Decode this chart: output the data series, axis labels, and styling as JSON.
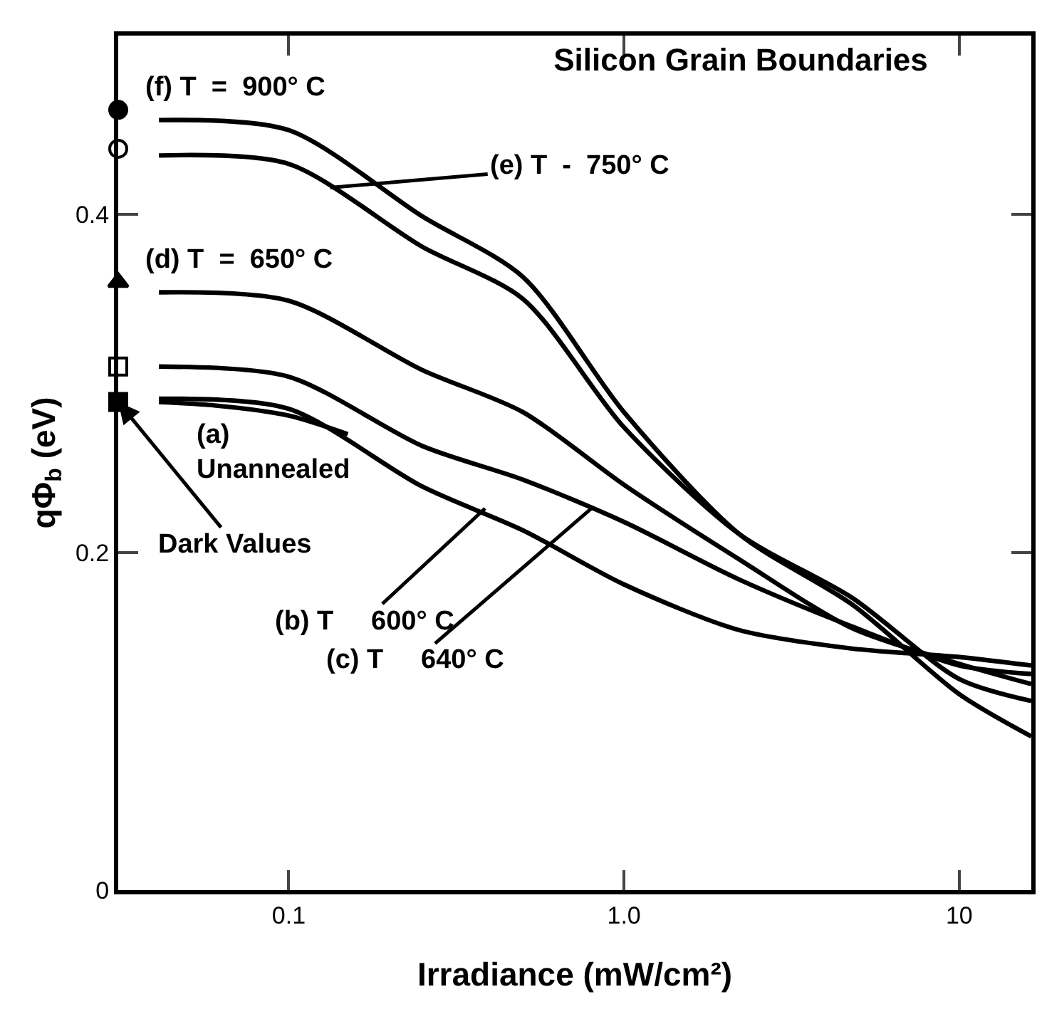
{
  "chart_data": {
    "type": "line",
    "title": "Silicon Grain Boundaries",
    "xlabel": "Irradiance (mW/cm²)",
    "ylabel": "qΦ$_{b}$ (eV)",
    "log": "x",
    "xlim": [
      0.031,
      16.4
    ],
    "ylim": [
      0,
      0.506
    ],
    "xticks": [
      0.1,
      {
        "value": 1,
        "label": "1.0"
      },
      10
    ],
    "yticks": [
      0,
      0.2,
      0.4
    ],
    "marker": "none",
    "line_style": "solid",
    "series": [
      {
        "color": "#000000",
        "x": [
          0.041,
          0.1,
          0.25,
          0.5,
          1,
          2.2,
          4.8,
          10,
          16.4
        ],
        "values": [
          0.456,
          0.45,
          0.399,
          0.363,
          0.283,
          0.211,
          0.169,
          0.116,
          0.091
        ]
      },
      {
        "color": "#000000",
        "x": [
          0.041,
          0.1,
          0.25,
          0.5,
          1,
          2.2,
          4.8,
          10,
          16.4
        ],
        "values": [
          0.435,
          0.43,
          0.381,
          0.35,
          0.274,
          0.211,
          0.173,
          0.125,
          0.112
        ]
      },
      {
        "color": "#000000",
        "x": [
          0.041,
          0.1,
          0.25,
          0.5,
          1,
          2.2,
          4.8,
          10,
          16.4
        ],
        "values": [
          0.354,
          0.349,
          0.308,
          0.283,
          0.24,
          0.196,
          0.155,
          0.134,
          0.122
        ]
      },
      {
        "color": "#000000",
        "x": [
          0.041,
          0.1,
          0.25,
          0.5,
          1,
          2.2,
          4.8,
          10,
          16.4
        ],
        "values": [
          0.31,
          0.304,
          0.263,
          0.243,
          0.218,
          0.184,
          0.156,
          0.133,
          0.128
        ]
      },
      {
        "color": "#000000",
        "x": [
          0.041,
          0.1,
          0.25,
          0.5,
          1,
          2.2,
          4.8,
          10,
          16.4
        ],
        "values": [
          0.291,
          0.285,
          0.239,
          0.213,
          0.181,
          0.154,
          0.143,
          0.138,
          0.133
        ]
      },
      {
        "color": "#000000",
        "x": [
          0.041,
          0.06,
          0.1,
          0.15
        ],
        "values": [
          0.289,
          0.287,
          0.281,
          0.27
        ]
      },
      {
        "type": "scatter",
        "marker": "circle",
        "color": "#000000",
        "x": [
          0.031
        ],
        "values": [
          0.462
        ]
      },
      {
        "type": "scatter",
        "marker": "circle-open",
        "color": "#000000",
        "x": [
          0.031
        ],
        "values": [
          0.439
        ]
      },
      {
        "type": "scatter",
        "marker": "triangle",
        "color": "#000000",
        "x": [
          0.031
        ],
        "values": [
          0.36
        ]
      },
      {
        "type": "scatter",
        "marker": "square-open",
        "color": "#000000",
        "x": [
          0.031
        ],
        "values": [
          0.31
        ]
      },
      {
        "type": "scatter",
        "marker": "square",
        "color": "#000000",
        "x": [
          0.031
        ],
        "values": [
          0.289
        ]
      }
    ],
    "annotations": [
      "(f) T  =  900° C",
      "(d) T  =  650° C",
      "(a)\nUnannealed",
      {
        "text": "(e) T  -  750° C",
        "x": 0.133,
        "y": 0.416
      },
      {
        "text": "(b) T     600° C",
        "x": 0.385,
        "y": 0.226
      },
      {
        "text": "(c) T     640° C",
        "x": 0.81,
        "y": 0.227
      },
      {
        "text": "Dark Values",
        "x": 0.031,
        "y": 0.289
      }
    ]
  }
}
